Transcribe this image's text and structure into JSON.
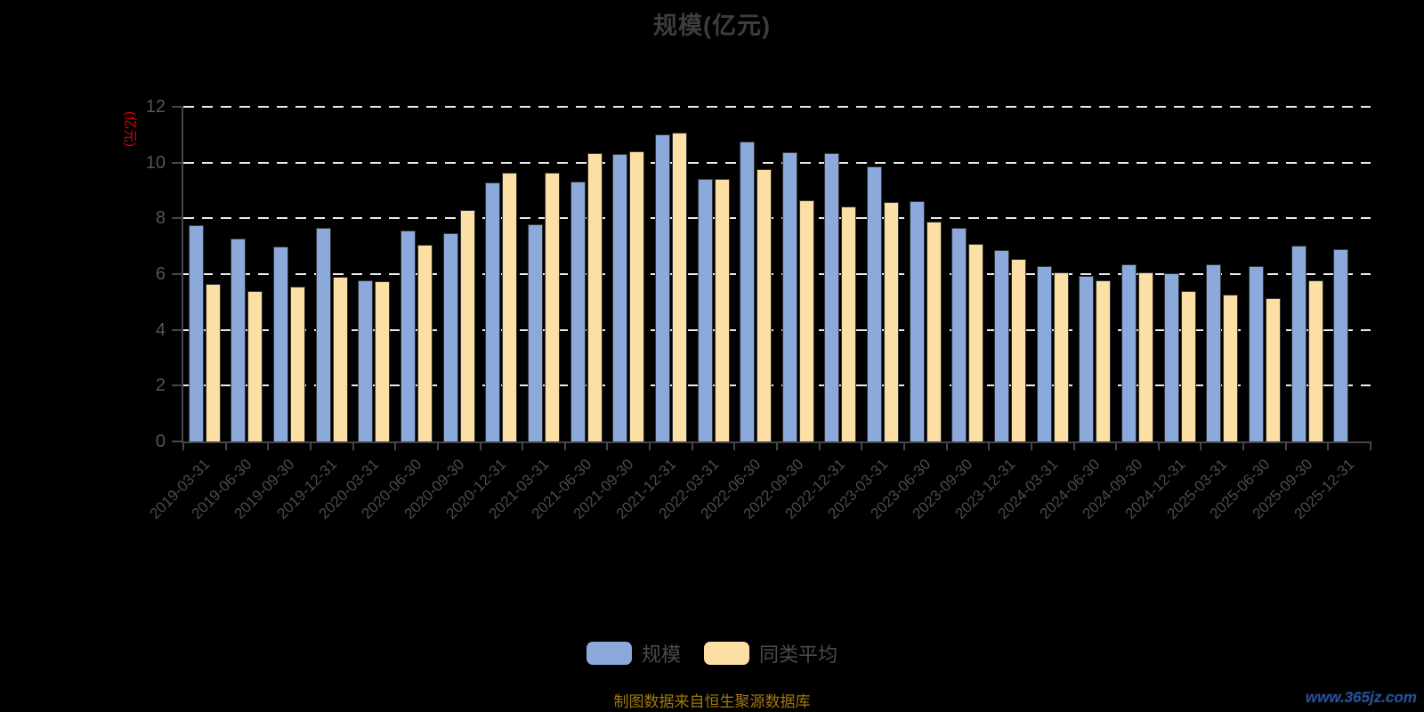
{
  "title": "规模(亿元)",
  "y_axis_name": "(亿元)",
  "footer_note": "制图数据来自恒生聚源数据库",
  "watermark": "www.365jz.com",
  "colors": {
    "background": "#000000",
    "scale_bar": "#8CA9DC",
    "peer_bar": "#FCDFA4",
    "bar_border": "#333336",
    "grid": "#ECECEC",
    "axis": "#45454A",
    "tick_label": "#55555A",
    "title_text": "#3D3D3F",
    "y_name_text": "#E60000",
    "footer_text": "#A0790F",
    "watermark_text": "#2552A0"
  },
  "legend": [
    {
      "label": "规模",
      "color": "#8CA9DC"
    },
    {
      "label": "同类平均",
      "color": "#FCDFA4"
    }
  ],
  "chart_data": {
    "type": "bar",
    "title": "规模(亿元)",
    "xlabel": "",
    "ylabel": "(亿元)",
    "ylim": [
      0,
      12
    ],
    "y_ticks": [
      0,
      2,
      4,
      6,
      8,
      10,
      12
    ],
    "grid": "dashed-horizontal",
    "legend_position": "bottom",
    "categories": [
      "2019-03-31",
      "2019-06-30",
      "2019-09-30",
      "2019-12-31",
      "2020-03-31",
      "2020-06-30",
      "2020-09-30",
      "2020-12-31",
      "2021-03-31",
      "2021-06-30",
      "2021-09-30",
      "2021-12-31",
      "2022-03-31",
      "2022-06-30",
      "2022-09-30",
      "2022-12-31",
      "2023-03-31",
      "2023-06-30",
      "2023-09-30",
      "2023-12-31",
      "2024-03-31",
      "2024-06-30",
      "2024-09-30",
      "2024-12-31",
      "2025-03-31",
      "2025-06-30",
      "2025-09-30",
      "2025-12-31"
    ],
    "series": [
      {
        "name": "规模",
        "values": [
          7.75,
          7.27,
          7.0,
          7.66,
          5.79,
          7.55,
          7.46,
          9.3,
          7.8,
          9.33,
          10.3,
          11.0,
          9.41,
          10.77,
          10.36,
          10.34,
          9.86,
          8.61,
          7.65,
          6.85,
          6.29,
          5.94,
          6.36,
          6.04,
          6.36,
          6.3,
          7.02,
          6.89
        ]
      },
      {
        "name": "同类平均",
        "values": [
          5.66,
          5.4,
          5.55,
          5.91,
          5.75,
          7.05,
          8.3,
          9.63,
          9.63,
          10.34,
          10.41,
          11.08,
          9.41,
          9.76,
          8.65,
          8.43,
          8.59,
          7.87,
          7.1,
          6.53,
          6.07,
          5.77,
          6.05,
          5.41,
          5.27,
          5.13,
          5.79,
          null
        ]
      }
    ]
  }
}
